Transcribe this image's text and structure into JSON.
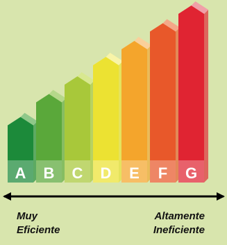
{
  "scale": {
    "letters": [
      "A",
      "B",
      "C",
      "D",
      "E",
      "F",
      "G"
    ],
    "colors": [
      "#1c8a3a",
      "#5aa83a",
      "#a8c83a",
      "#ece232",
      "#f4a52c",
      "#e8582a",
      "#e02432"
    ],
    "highlights": [
      "#8fc88a",
      "#b5d88a",
      "#d8e890",
      "#f8f4a8",
      "#fad09a",
      "#f4a888",
      "#f0a0a8"
    ],
    "relative_heights": [
      0.37,
      0.5,
      0.6,
      0.71,
      0.8,
      0.9,
      1.0
    ]
  },
  "axis": {
    "arrow": "double-headed-arrow"
  },
  "labels": {
    "left_line1": "Muy",
    "left_line2": "Eficiente",
    "right_line1": "Altamente",
    "right_line2": "Ineficiente"
  }
}
